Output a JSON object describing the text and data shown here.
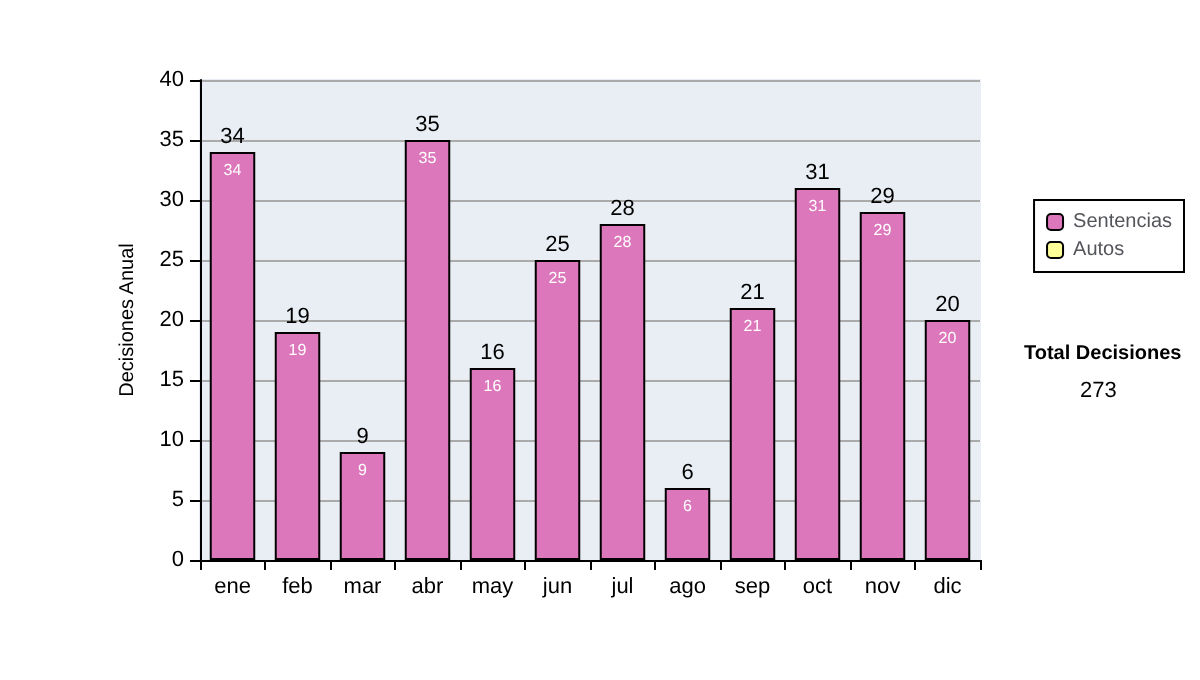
{
  "chart_data": {
    "type": "bar",
    "ylabel": "Decisiones Anual",
    "categories": [
      "ene",
      "feb",
      "mar",
      "abr",
      "may",
      "jun",
      "jul",
      "ago",
      "sep",
      "oct",
      "nov",
      "dic"
    ],
    "series": [
      {
        "name": "Sentencias",
        "color": "#dd77bb",
        "values": [
          34,
          19,
          9,
          35,
          16,
          25,
          28,
          6,
          21,
          31,
          29,
          20
        ],
        "value_labels": [
          "34",
          "19",
          "9",
          "35",
          "16",
          "25",
          "28",
          "6",
          "21",
          "31",
          "29",
          "20"
        ]
      },
      {
        "name": "Autos",
        "color": "#ffff99",
        "values": [
          0,
          0,
          0,
          0,
          0,
          0,
          0,
          0,
          0,
          0,
          0,
          0
        ]
      }
    ],
    "stacked": true,
    "totals": [
      "34",
      "19",
      "9",
      "35",
      "16",
      "25",
      "28",
      "6",
      "21",
      "31",
      "29",
      "20"
    ],
    "ylim": [
      0,
      40
    ],
    "yticks": [
      0,
      5,
      10,
      15,
      20,
      25,
      30,
      35,
      40
    ],
    "grid": "y",
    "legend": "right",
    "annotations": [
      "Total Decisiones",
      "273"
    ]
  }
}
